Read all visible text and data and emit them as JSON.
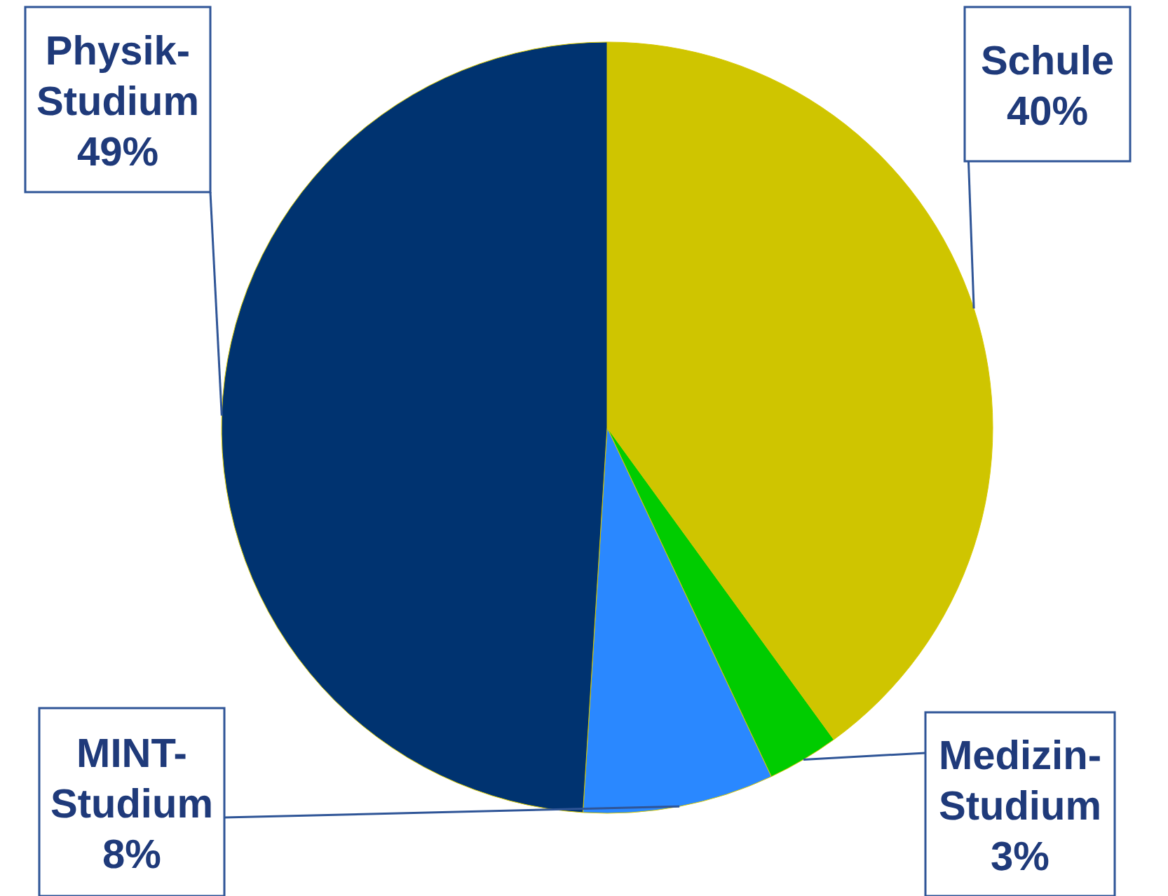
{
  "chart_data": {
    "type": "pie",
    "categories": [
      "Schule",
      "Medizin-Studium",
      "MINT-Studium",
      "Physik-Studium"
    ],
    "values": [
      40,
      3,
      8,
      49
    ],
    "value_labels": [
      "40%",
      "3%",
      "8%",
      "49%"
    ],
    "colors": [
      "#cfc500",
      "#00cc00",
      "#2a88ff",
      "#003370"
    ]
  }
}
